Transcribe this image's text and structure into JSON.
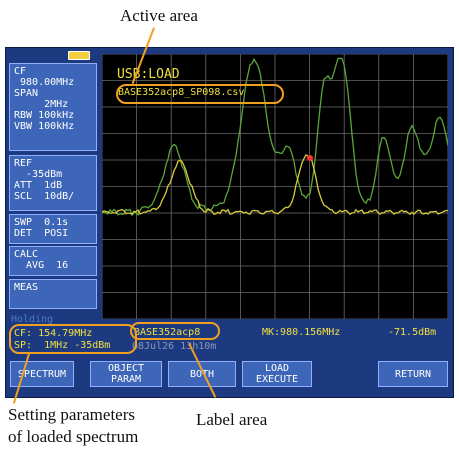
{
  "annotations": {
    "active_area": "Active area",
    "label_area": "Label area",
    "setting_params": "Setting parameters\nof loaded spectrum"
  },
  "sidebar": {
    "cf_panel": "CF\n 980.00MHz\nSPAN\n     2MHz\nRBW 100kHz\nVBW 100kHz",
    "ref_panel": "REF\n  -35dBm\nATT  1dB\nSCL  10dB/",
    "swp_panel": "SWP  0.1s\nDET  POSI",
    "calc_panel": "CALC\n  AVG  16",
    "meas_panel": "MEAS",
    "holding": "Holding"
  },
  "screen": {
    "usb_status": "USB:LOAD",
    "filename": "BASE352acp8_SP098.csv"
  },
  "status_bar": {
    "cf_line": "CF: 154.79MHz",
    "sp_line": "SP:  1MHz -35dBm",
    "label": "BASE352acp8",
    "timestamp": "08Jul26 13h10m",
    "marker": "MK:980.156MHz",
    "marker_level": "-71.5dBm"
  },
  "softkeys": {
    "spectrum": "SPECTRUM",
    "object_param": "OBJECT\nPARAM",
    "both": "BOTH",
    "load_execute": "LOAD\nEXECUTE",
    "return": "RETURN"
  },
  "colors": {
    "device_bg": "#1d3a80",
    "panel_bg": "#3d66b8",
    "trace_green": "#5aa63a",
    "trace_yellow": "#d8cc3c",
    "highlight": "#f0a020",
    "marker": "#ff3030"
  }
}
